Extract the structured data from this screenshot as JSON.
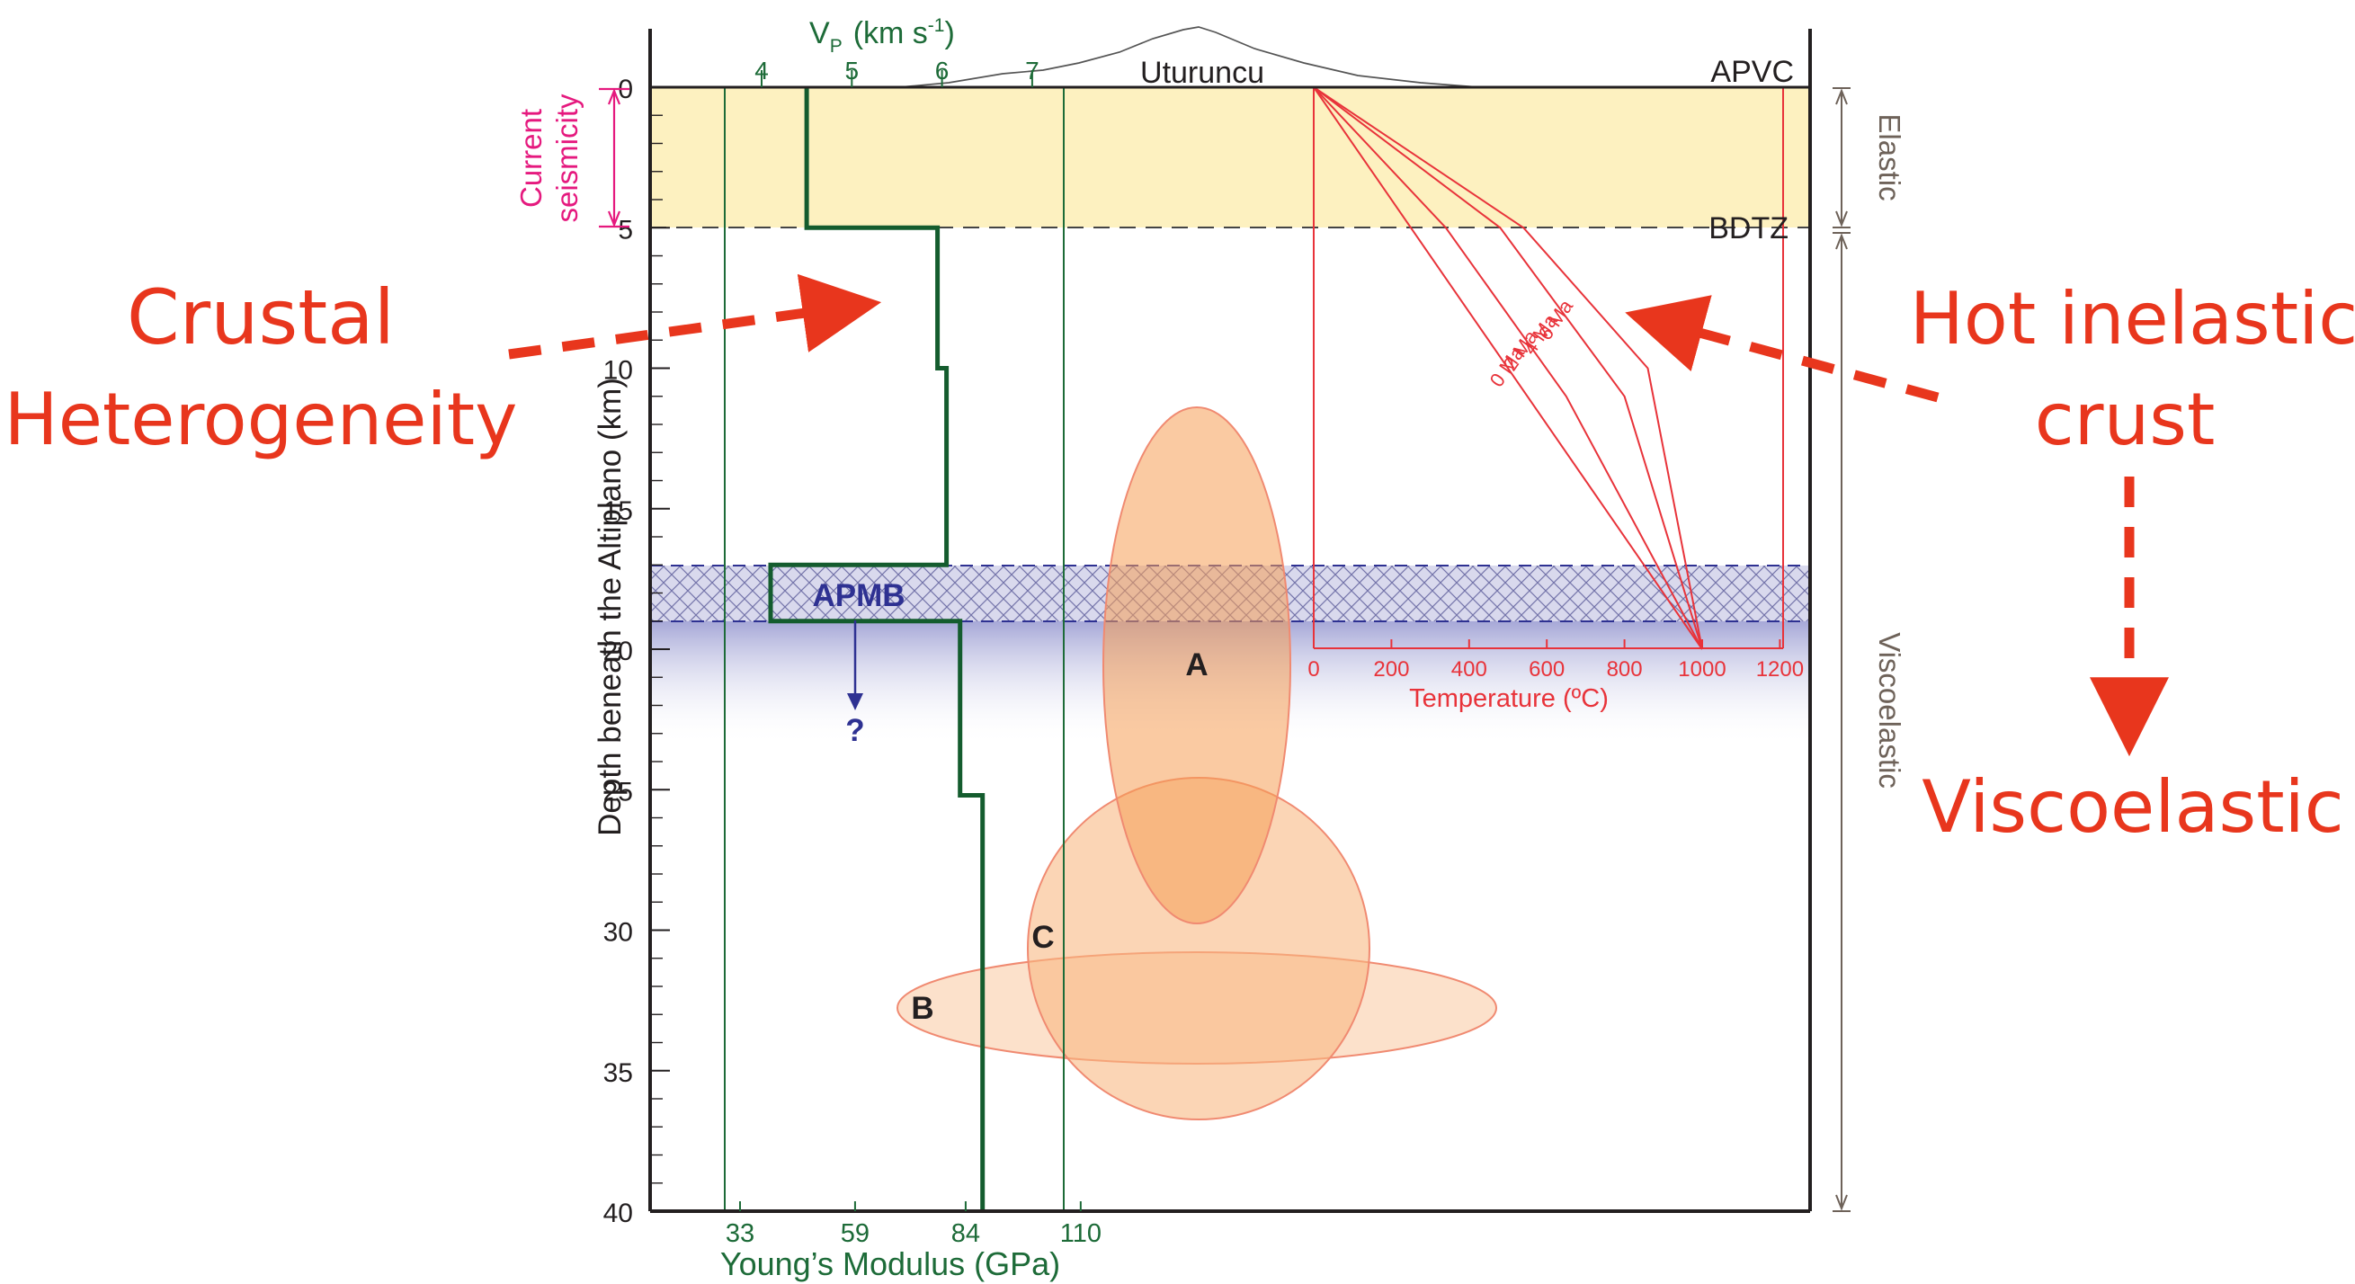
{
  "annotations": {
    "left_line1": "Crustal",
    "left_line2": "Heterogeneity",
    "right_line1": "Hot inelastic",
    "right_line2": "crust",
    "right_bottom": "Viscoelastic"
  },
  "axes": {
    "depth_title": "Depth beneath the Altiplano (km)",
    "depth_ticks": [
      "0",
      "5",
      "10",
      "15",
      "20",
      "25",
      "30",
      "35",
      "40"
    ],
    "vp_label": "V",
    "vp_sub": "P",
    "vp_units": "(km s",
    "vp_units_sup": "-1",
    "vp_units_end": ")",
    "vp_ticks": [
      "4",
      "5",
      "6",
      "7"
    ],
    "ym_title": "Young’s Modulus (GPa)",
    "ym_ticks": [
      "33",
      "59",
      "84",
      "110"
    ],
    "temp_title": "Temperature (ºC)",
    "temp_ticks": [
      "0",
      "200",
      "400",
      "600",
      "800",
      "1000",
      "1200"
    ]
  },
  "labels": {
    "uturuncu": "Uturuncu",
    "apvc": "APVC",
    "bdtz": "BDTZ",
    "apmb": "APMB",
    "question": "?",
    "current_line1": "Current",
    "current_line2": "seismicity",
    "elastic": "Elastic",
    "viscoelastic": "Viscoelastic",
    "body_a": "A",
    "body_b": "B",
    "body_c": "C",
    "geotherm_0": "0 Ma",
    "geotherm_2": "2 Ma",
    "geotherm_4": "4 Ma",
    "geotherm_6": "6 Ma"
  },
  "colors": {
    "annotation_red": "#e8361d",
    "vp_green": "#1d6b38",
    "magenta": "#e5197e",
    "temperature_red": "#e8333a",
    "apmb_blue": "#2e3192",
    "body_orange": "#f7a35c",
    "elastic_yellow": "#fdf1c0",
    "brown_gray": "#6e6259"
  },
  "chart_data": {
    "type": "line",
    "depth_axis": {
      "label": "Depth beneath the Altiplano (km)",
      "ylim": [
        0,
        40
      ],
      "inverted": true
    },
    "vp_profile": {
      "name": "Vp",
      "units": "km s-1",
      "x_range": [
        3.6,
        7.7
      ],
      "points": [
        [
          4.5,
          0
        ],
        [
          4.5,
          5
        ],
        [
          5.95,
          5
        ],
        [
          5.95,
          10
        ],
        [
          6.05,
          10
        ],
        [
          6.05,
          17
        ],
        [
          4.1,
          17
        ],
        [
          4.1,
          19
        ],
        [
          6.2,
          19
        ],
        [
          6.2,
          25.2
        ],
        [
          6.45,
          25.2
        ],
        [
          6.45,
          40
        ]
      ]
    },
    "youngs_modulus_ticks_gpa": [
      33,
      59,
      84,
      110
    ],
    "temperature_axis": {
      "label": "Temperature (ºC)",
      "xlim": [
        0,
        1200
      ],
      "ticks": [
        0,
        200,
        400,
        600,
        800,
        1000,
        1200
      ]
    },
    "geotherms": [
      {
        "age": "0 Ma",
        "points": [
          [
            0,
            0
          ],
          [
            1000,
            20
          ]
        ]
      },
      {
        "age": "2 Ma",
        "points": [
          [
            0,
            0
          ],
          [
            340,
            5
          ],
          [
            650,
            11
          ],
          [
            1000,
            20
          ]
        ]
      },
      {
        "age": "4 Ma",
        "points": [
          [
            0,
            0
          ],
          [
            480,
            5
          ],
          [
            800,
            11
          ],
          [
            1000,
            20
          ]
        ]
      },
      {
        "age": "6 Ma",
        "points": [
          [
            0,
            0
          ],
          [
            540,
            5
          ],
          [
            860,
            10
          ],
          [
            1000,
            20
          ]
        ]
      }
    ],
    "layers": [
      {
        "name": "Elastic",
        "depth_km": [
          0,
          5
        ]
      },
      {
        "name": "APMB",
        "depth_km": [
          17,
          19
        ]
      },
      {
        "name": "Viscoelastic",
        "depth_km": [
          5,
          40
        ]
      }
    ],
    "bodies": [
      {
        "label": "A",
        "center_depth_km": 20.5,
        "depth_range_km": [
          11.4,
          29.6
        ]
      },
      {
        "label": "B",
        "center_depth_km": 32.8,
        "depth_range_km": [
          30.8,
          34.8
        ]
      },
      {
        "label": "C",
        "center_depth_km": 30.5,
        "depth_range_km": [
          24.4,
          36.6
        ]
      }
    ]
  }
}
